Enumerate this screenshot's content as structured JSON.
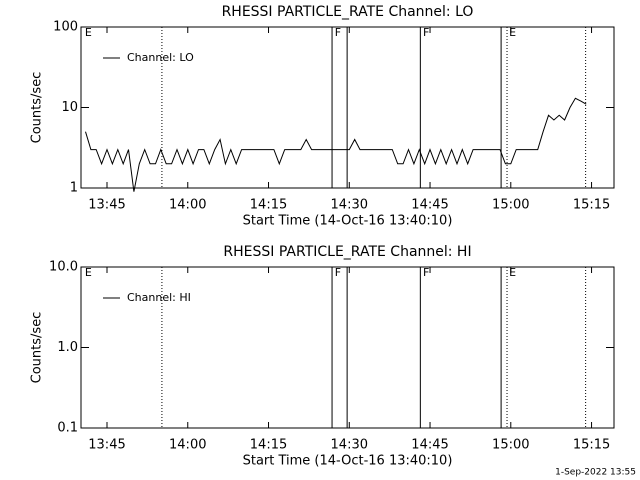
{
  "chart_data": [
    {
      "type": "line",
      "title": "RHESSI PARTICLE_RATE Channel: LO",
      "x_label": "Start Time (14-Oct-16 13:40:10)",
      "y_label": "Counts/sec",
      "xlim": [
        820.17,
        919.17
      ],
      "xticks": [
        {
          "value": 825,
          "label": "13:45"
        },
        {
          "value": 840,
          "label": "14:00"
        },
        {
          "value": 855,
          "label": "14:15"
        },
        {
          "value": 870,
          "label": "14:30"
        },
        {
          "value": 885,
          "label": "14:45"
        },
        {
          "value": 900,
          "label": "15:00"
        },
        {
          "value": 915,
          "label": "15:15"
        }
      ],
      "ylim": [
        1,
        100
      ],
      "yticks": [
        100,
        10,
        1
      ],
      "log_y": true,
      "legend": "top-left",
      "series": [
        {
          "name": "Channel: LO",
          "color": "#000000",
          "x": [
            821,
            822,
            823,
            824,
            825,
            826,
            827,
            828,
            829,
            830,
            831,
            832,
            833,
            834,
            835,
            836,
            837,
            838,
            839,
            840,
            841,
            842,
            843,
            844,
            845,
            846,
            847,
            848,
            849,
            850,
            851,
            852,
            853,
            854,
            855,
            856,
            857,
            858,
            859,
            860,
            861,
            862,
            863,
            864,
            865,
            866,
            867,
            868,
            869,
            870,
            871,
            872,
            873,
            874,
            875,
            876,
            877,
            878,
            879,
            880,
            881,
            882,
            883,
            884,
            885,
            886,
            887,
            888,
            889,
            890,
            891,
            892,
            893,
            894,
            895,
            896,
            897,
            898,
            899,
            900,
            901,
            902,
            903,
            904,
            905,
            906,
            907,
            908,
            909,
            910,
            911,
            912,
            913,
            914
          ],
          "values": [
            5,
            3,
            3,
            2,
            3,
            2,
            3,
            2,
            3,
            0.9,
            2,
            3,
            2,
            2,
            3,
            2,
            2,
            3,
            2,
            3,
            2,
            3,
            3,
            2,
            3,
            4,
            2,
            3,
            2,
            3,
            3,
            3,
            3,
            3,
            3,
            3,
            2,
            3,
            3,
            3,
            3,
            4,
            3,
            3,
            3,
            3,
            3,
            3,
            3,
            3,
            4,
            3,
            3,
            3,
            3,
            3,
            3,
            3,
            2,
            2,
            3,
            2,
            3,
            2,
            3,
            2,
            3,
            2,
            3,
            2,
            3,
            2,
            3,
            3,
            3,
            3,
            3,
            3,
            2,
            2,
            3,
            3,
            3,
            3,
            3,
            5,
            8,
            7,
            8,
            7,
            10,
            13,
            12,
            11
          ]
        }
      ],
      "markers": [
        {
          "x": 835.2,
          "style": "dotted"
        },
        {
          "x": 866.8,
          "style": "solid"
        },
        {
          "x": 869.6,
          "style": "solid"
        },
        {
          "x": 883.2,
          "style": "solid"
        },
        {
          "x": 898.2,
          "style": "solid"
        },
        {
          "x": 899.3,
          "style": "dotted"
        },
        {
          "x": 913.9,
          "style": "dotted"
        }
      ],
      "annotations": [
        {
          "text": "E",
          "x": 820.9
        },
        {
          "text": "F",
          "x": 867.3
        },
        {
          "text": "F",
          "x": 883.7
        },
        {
          "text": "E",
          "x": 899.7
        }
      ]
    },
    {
      "type": "line",
      "title": "RHESSI PARTICLE_RATE Channel: HI",
      "x_label": "Start Time (14-Oct-16 13:40:10)",
      "y_label": "Counts/sec",
      "xlim": [
        820.17,
        919.17
      ],
      "xticks": [
        {
          "value": 825,
          "label": "13:45"
        },
        {
          "value": 840,
          "label": "14:00"
        },
        {
          "value": 855,
          "label": "14:15"
        },
        {
          "value": 870,
          "label": "14:30"
        },
        {
          "value": 885,
          "label": "14:45"
        },
        {
          "value": 900,
          "label": "15:00"
        },
        {
          "value": 915,
          "label": "15:15"
        }
      ],
      "ylim": [
        0.1,
        10
      ],
      "yticks": [
        {
          "value": 10,
          "label": "10.0"
        },
        {
          "value": 1,
          "label": "1.0"
        },
        0.1
      ],
      "log_y": true,
      "legend": "top-left",
      "series": [
        {
          "name": "Channel: HI",
          "color": "#000000",
          "x": [],
          "values": []
        }
      ],
      "markers": [
        {
          "x": 835.2,
          "style": "dotted"
        },
        {
          "x": 866.8,
          "style": "solid"
        },
        {
          "x": 869.6,
          "style": "solid"
        },
        {
          "x": 883.2,
          "style": "solid"
        },
        {
          "x": 898.2,
          "style": "solid"
        },
        {
          "x": 899.3,
          "style": "dotted"
        },
        {
          "x": 913.9,
          "style": "dotted"
        }
      ],
      "annotations": [
        {
          "text": "E",
          "x": 820.9
        },
        {
          "text": "F",
          "x": 867.3
        },
        {
          "text": "F",
          "x": 883.7
        },
        {
          "text": "E",
          "x": 899.7
        }
      ]
    }
  ],
  "footer": "1-Sep-2022 13:55"
}
